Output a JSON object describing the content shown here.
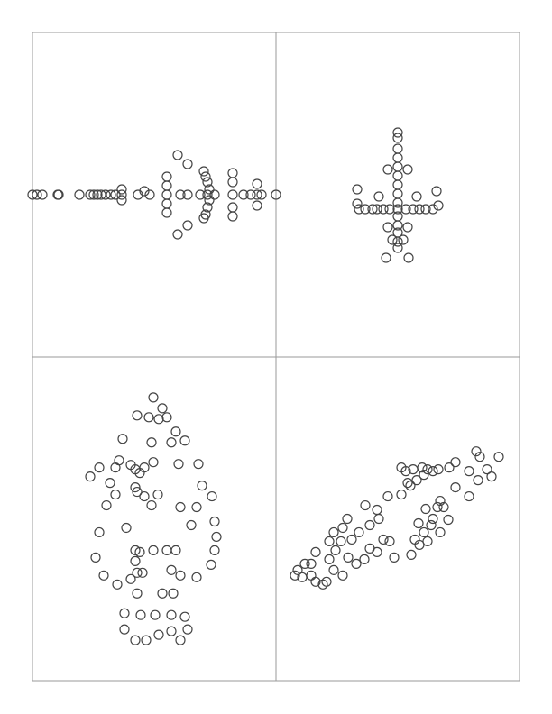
{
  "chart_data": [
    {
      "type": "scatter",
      "color": "#444444",
      "xlim": [
        0,
        270
      ],
      "ylim": [
        0,
        360
      ],
      "x": [
        0,
        5,
        11,
        28,
        29,
        52,
        64,
        68,
        72,
        76,
        81,
        87,
        92,
        99,
        99,
        99,
        117,
        124,
        130,
        149,
        164,
        172,
        186,
        194,
        202,
        222,
        234,
        242,
        249,
        254,
        270,
        149,
        149,
        149,
        149,
        161,
        161,
        172,
        172,
        190,
        192,
        194,
        196,
        196,
        194,
        192,
        190,
        222,
        222,
        222,
        222,
        249,
        249
      ],
      "y": [
        180,
        180,
        180,
        180,
        180,
        180,
        180,
        180,
        180,
        180,
        180,
        180,
        180,
        186,
        180,
        174,
        180,
        184,
        180,
        180,
        180,
        180,
        180,
        180,
        180,
        180,
        180,
        180,
        180,
        180,
        180,
        200,
        190,
        170,
        160,
        224,
        136,
        214,
        146,
        206,
        200,
        194,
        186,
        174,
        166,
        158,
        154,
        204,
        194,
        166,
        156,
        192,
        168
      ]
    },
    {
      "type": "scatter",
      "color": "#444444",
      "xlim": [
        0,
        270
      ],
      "ylim": [
        0,
        360
      ],
      "x": [
        135,
        135,
        135,
        135,
        135,
        135,
        135,
        135,
        135,
        135,
        135,
        135,
        135,
        135,
        135,
        92,
        99,
        107,
        112,
        119,
        126,
        144,
        152,
        159,
        166,
        174,
        90,
        178,
        90,
        180,
        124,
        146,
        122,
        147,
        114,
        156,
        124,
        146,
        129,
        141
      ],
      "y": [
        249,
        243,
        231,
        221,
        211,
        201,
        191,
        181,
        171,
        164,
        156,
        146,
        138,
        128,
        121,
        164,
        164,
        164,
        164,
        164,
        164,
        164,
        164,
        164,
        164,
        164,
        186,
        184,
        170,
        168,
        208,
        208,
        110,
        110,
        178,
        178,
        144,
        144,
        130,
        130
      ]
    },
    {
      "type": "scatter",
      "color": "#444444",
      "xlim": [
        0,
        270
      ],
      "ylim": [
        0,
        360
      ],
      "x": [
        134,
        116,
        129,
        140,
        149,
        144,
        159,
        100,
        132,
        154,
        169,
        64,
        74,
        92,
        96,
        109,
        114,
        119,
        124,
        134,
        162,
        184,
        86,
        114,
        116,
        124,
        139,
        92,
        82,
        132,
        164,
        182,
        199,
        188,
        202,
        176,
        104,
        74,
        204,
        202,
        114,
        119,
        134,
        149,
        159,
        70,
        198,
        114,
        116,
        122,
        154,
        164,
        79,
        94,
        109,
        182,
        116,
        144,
        156,
        102,
        120,
        136,
        154,
        169,
        102,
        114,
        126,
        140,
        154,
        164,
        172
      ],
      "y": [
        315,
        295,
        293,
        291,
        293,
        303,
        277,
        269,
        265,
        265,
        267,
        227,
        237,
        237,
        245,
        240,
        235,
        231,
        237,
        243,
        241,
        241,
        220,
        215,
        210,
        205,
        207,
        207,
        195,
        195,
        193,
        193,
        205,
        217,
        177,
        173,
        170,
        165,
        160,
        145,
        145,
        143,
        145,
        145,
        145,
        137,
        129,
        133,
        120,
        120,
        123,
        117,
        117,
        107,
        113,
        115,
        97,
        97,
        97,
        75,
        73,
        73,
        73,
        71,
        57,
        45,
        45,
        51,
        55,
        45,
        57
      ]
    },
    {
      "type": "scatter",
      "color": "#444444",
      "xlim": [
        0,
        270
      ],
      "ylim": [
        0,
        360
      ],
      "x": [
        222,
        226,
        247,
        234,
        239,
        214,
        224,
        199,
        192,
        139,
        144,
        152,
        162,
        168,
        174,
        180,
        164,
        146,
        139,
        149,
        156,
        124,
        199,
        214,
        182,
        179,
        186,
        166,
        174,
        191,
        158,
        172,
        164,
        154,
        168,
        182,
        150,
        159,
        131,
        112,
        99,
        79,
        74,
        64,
        59,
        72,
        84,
        92,
        104,
        114,
        119,
        126,
        104,
        112,
        80,
        66,
        44,
        39,
        32,
        24,
        21,
        29,
        39,
        44,
        52,
        64,
        59,
        74,
        89,
        98,
        56
      ],
      "y": [
        255,
        249,
        249,
        235,
        227,
        233,
        223,
        243,
        237,
        237,
        233,
        235,
        237,
        235,
        233,
        235,
        229,
        220,
        207,
        217,
        223,
        205,
        215,
        205,
        200,
        193,
        193,
        191,
        180,
        179,
        175,
        173,
        165,
        157,
        155,
        165,
        140,
        151,
        137,
        190,
        195,
        180,
        170,
        165,
        155,
        155,
        157,
        165,
        173,
        180,
        157,
        155,
        147,
        143,
        137,
        145,
        143,
        130,
        130,
        123,
        117,
        115,
        117,
        110,
        107,
        123,
        135,
        117,
        130,
        135,
        110
      ]
    }
  ]
}
